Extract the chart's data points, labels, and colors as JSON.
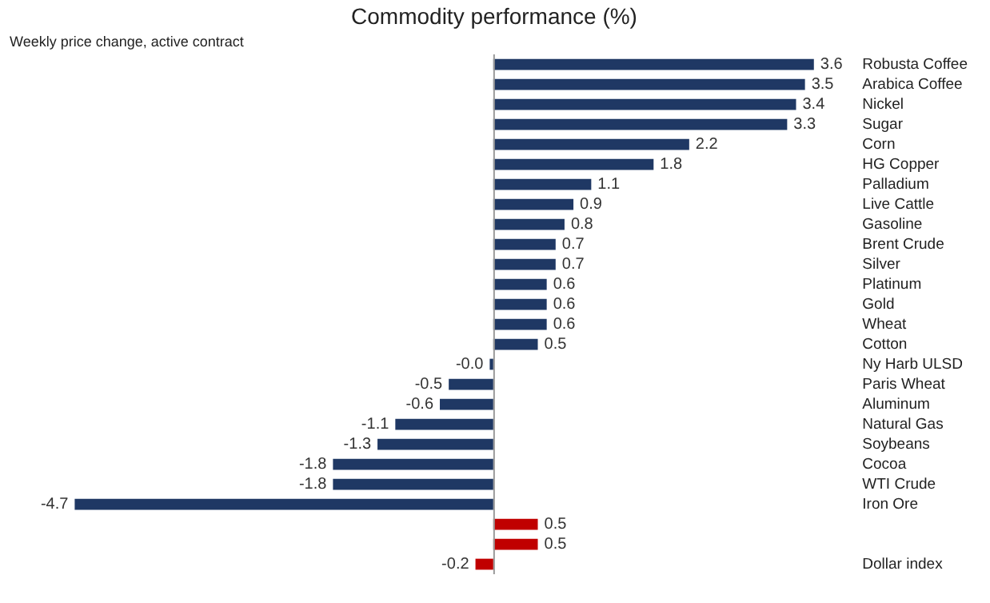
{
  "chart_data": {
    "type": "bar",
    "orientation": "horizontal",
    "title": "Commodity performance (%)",
    "subtitle": "Weekly price change, active contract",
    "categories": [
      "Robusta Coffee",
      "Arabica Coffee",
      "Nickel",
      "Sugar",
      "Corn",
      "HG Copper",
      "Palladium",
      "Live Cattle",
      "Gasoline",
      "Brent Crude",
      "Silver",
      "Platinum",
      "Gold",
      "Wheat",
      "Cotton",
      "Ny Harb ULSD",
      "Paris Wheat",
      "Aluminum",
      "Natural Gas",
      "Soybeans",
      "Cocoa",
      "WTI Crude",
      "Iron Ore",
      null,
      null,
      "Dollar index"
    ],
    "values": [
      3.6,
      3.5,
      3.4,
      3.3,
      2.2,
      1.8,
      1.1,
      0.9,
      0.8,
      0.7,
      0.7,
      0.6,
      0.6,
      0.6,
      0.5,
      -0.04,
      -0.5,
      -0.6,
      -1.1,
      -1.3,
      -1.8,
      -1.8,
      -4.7,
      0.5,
      0.5,
      -0.2
    ],
    "value_labels": [
      "3.6",
      "3.5",
      "3.4",
      "3.3",
      "2.2",
      "1.8",
      "1.1",
      "0.9",
      "0.8",
      "0.7",
      "0.7",
      "0.6",
      "0.6",
      "0.6",
      "0.5",
      "-0.0",
      "-0.5",
      "-0.6",
      "-1.1",
      "-1.3",
      "-1.8",
      "-1.8",
      "-4.7",
      "0.5",
      "0.5",
      "-0.2"
    ],
    "colors": [
      "#1f3864",
      "#1f3864",
      "#1f3864",
      "#1f3864",
      "#1f3864",
      "#1f3864",
      "#1f3864",
      "#1f3864",
      "#1f3864",
      "#1f3864",
      "#1f3864",
      "#1f3864",
      "#1f3864",
      "#1f3864",
      "#1f3864",
      "#1f3864",
      "#1f3864",
      "#1f3864",
      "#1f3864",
      "#1f3864",
      "#1f3864",
      "#1f3864",
      "#1f3864",
      "#c00000",
      "#c00000",
      "#c00000"
    ],
    "tick_labels": "y",
    "grid": false,
    "legend": false
  }
}
